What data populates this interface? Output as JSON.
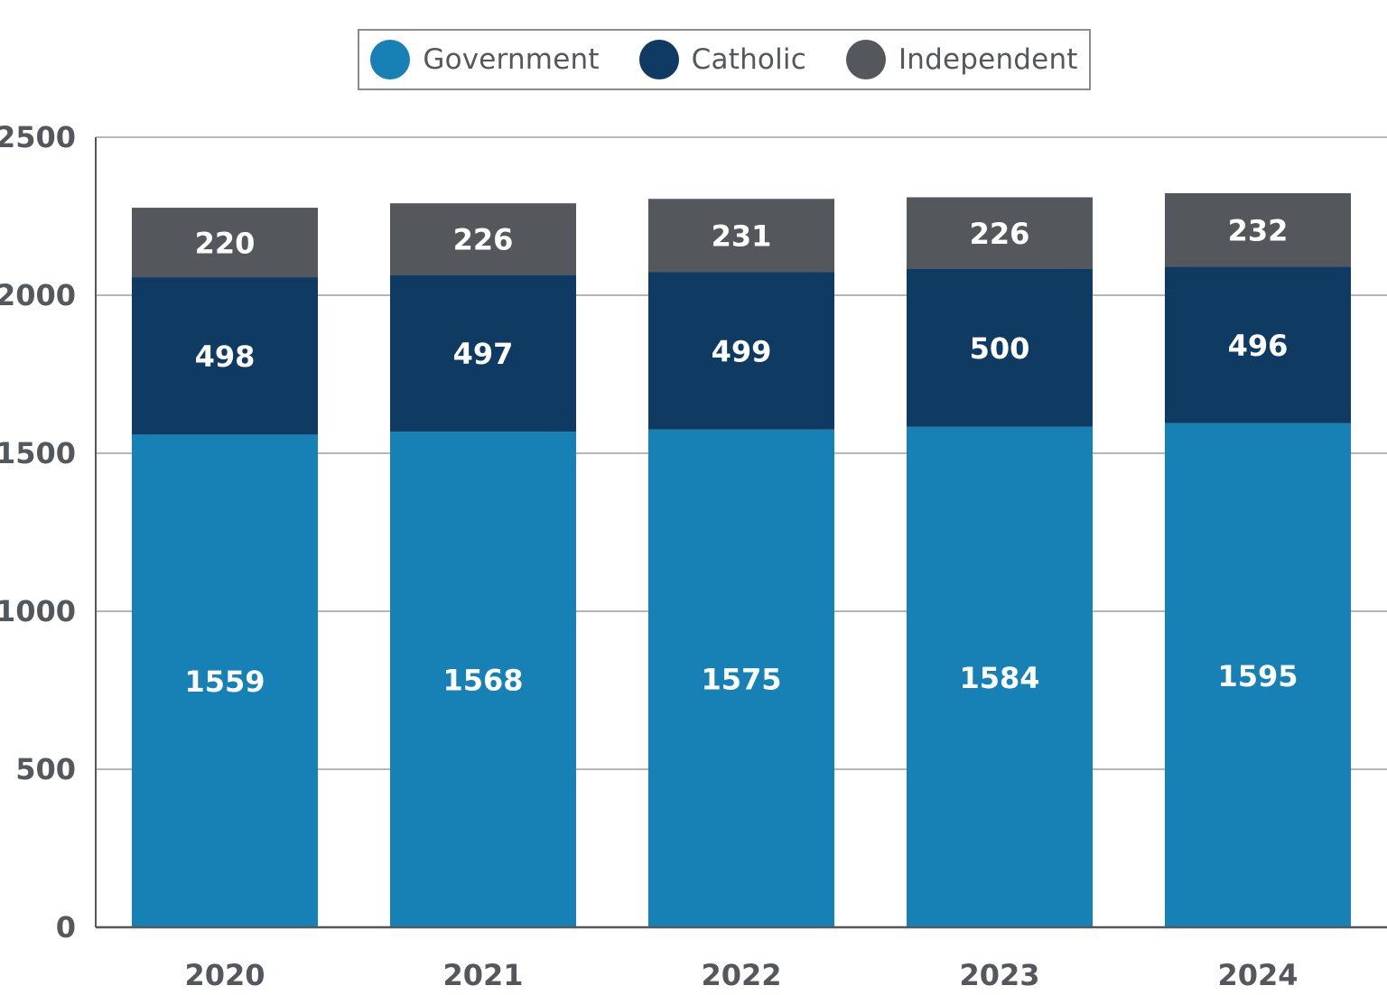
{
  "chart_data": {
    "type": "bar",
    "stacked": true,
    "categories": [
      "2020",
      "2021",
      "2022",
      "2023",
      "2024"
    ],
    "series": [
      {
        "name": "Government",
        "color": "#1780b5",
        "values": [
          1559,
          1568,
          1575,
          1584,
          1595
        ]
      },
      {
        "name": "Catholic",
        "color": "#0f3a61",
        "values": [
          498,
          497,
          499,
          500,
          496
        ]
      },
      {
        "name": "Independent",
        "color": "#54575b",
        "values": [
          220,
          226,
          231,
          226,
          232
        ]
      }
    ],
    "title": "",
    "xlabel": "",
    "ylabel": "",
    "ylim": [
      0,
      2500
    ],
    "yticks": [
      0,
      500,
      1000,
      1500,
      2000,
      2500
    ],
    "grid": true,
    "legend": "top-center",
    "data_labels": true
  },
  "legend": {
    "items": [
      {
        "label": "Government",
        "color": "#1780b5"
      },
      {
        "label": "Catholic",
        "color": "#0f3a61"
      },
      {
        "label": "Independent",
        "color": "#54575b"
      }
    ]
  },
  "colors": {
    "gridline": "#b4b6b8",
    "axis": "#54575b",
    "tick_text": "#54575b",
    "legend_border": "#8a8c8e"
  }
}
